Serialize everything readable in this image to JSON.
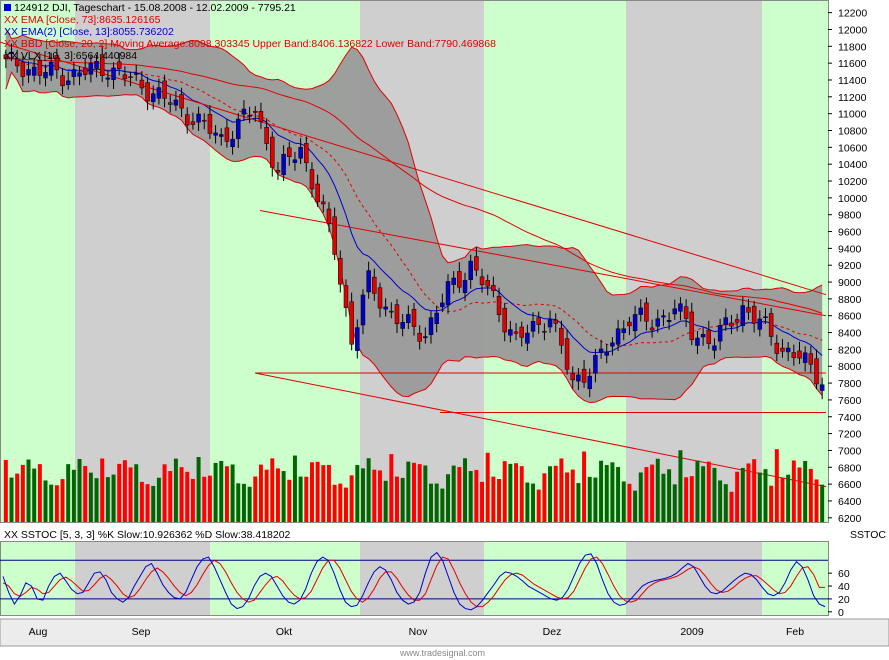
{
  "chart_data": {
    "type": "candlestick",
    "symbol_line": "124912  DJI, Tageschart - 15.08.2008 - 12.02.2009 - 7795.21",
    "indicator_labels": [
      {
        "text": "XX EMA [Close, 73]:8635.126165",
        "color": "#e00000"
      },
      {
        "text": "XX EMA(2) [Close, 13]:8055.736202",
        "color": "#0000cc"
      },
      {
        "text": "XX BBD [Close, 20, 2] Moving Average:8098.303345 Upper Band:8406.136822 Lower Band:7790.469868",
        "color": "#e00000"
      },
      {
        "text": "XX VLX [10, 3]:6564.440984",
        "color": "#000000"
      }
    ],
    "price_axis": {
      "ylim": [
        6150,
        12350
      ],
      "ticks": [
        6200,
        6400,
        6600,
        6800,
        7000,
        7200,
        7400,
        7600,
        7800,
        8000,
        8200,
        8400,
        8600,
        8800,
        9000,
        9200,
        9400,
        9600,
        9800,
        10000,
        10200,
        10400,
        10600,
        10800,
        11000,
        11200,
        11400,
        11600,
        11800,
        12000,
        12200
      ]
    },
    "x_labels": [
      "Aug",
      "Sep",
      "Okt",
      "Nov",
      "Dez",
      "2009",
      "Feb"
    ],
    "stoch": {
      "label": "XX SSTOC [5, 3, 3] %K Slow:10.926362 %D Slow:38.418202",
      "panel_title": "SSTOC",
      "ticks": [
        0,
        20,
        40,
        60
      ],
      "ylim": [
        -5,
        110
      ],
      "levels": [
        20,
        80
      ],
      "k_series": [
        55,
        30,
        12,
        25,
        45,
        40,
        20,
        18,
        40,
        55,
        60,
        48,
        35,
        28,
        30,
        45,
        60,
        62,
        50,
        30,
        20,
        15,
        22,
        40,
        55,
        70,
        75,
        60,
        42,
        30,
        22,
        20,
        30,
        50,
        70,
        82,
        85,
        70,
        50,
        30,
        12,
        5,
        8,
        20,
        40,
        55,
        60,
        55,
        40,
        25,
        15,
        12,
        18,
        35,
        60,
        78,
        85,
        80,
        60,
        35,
        15,
        8,
        10,
        25,
        45,
        62,
        70,
        65,
        50,
        30,
        18,
        12,
        15,
        30,
        60,
        85,
        92,
        80,
        55,
        30,
        12,
        5,
        3,
        8,
        18,
        30,
        42,
        55,
        62,
        60,
        55,
        48,
        40,
        35,
        30,
        25,
        20,
        18,
        22,
        35,
        55,
        75,
        88,
        90,
        75,
        50,
        28,
        15,
        10,
        12,
        20,
        30,
        40,
        45,
        48,
        50,
        52,
        55,
        60,
        68,
        75,
        70,
        55,
        40,
        30,
        28,
        32,
        40,
        48,
        55,
        60,
        58,
        50,
        38,
        28,
        25,
        30,
        45,
        65,
        78,
        70,
        50,
        25,
        12,
        8
      ],
      "d_series": [
        45,
        40,
        28,
        24,
        30,
        38,
        35,
        28,
        30,
        40,
        50,
        54,
        48,
        40,
        32,
        33,
        42,
        52,
        57,
        50,
        40,
        28,
        22,
        25,
        36,
        50,
        62,
        68,
        62,
        52,
        40,
        30,
        25,
        30,
        42,
        58,
        72,
        80,
        75,
        62,
        45,
        30,
        20,
        15,
        18,
        30,
        42,
        52,
        55,
        48,
        36,
        26,
        20,
        22,
        32,
        50,
        68,
        80,
        80,
        68,
        50,
        32,
        20,
        15,
        22,
        35,
        52,
        62,
        62,
        52,
        38,
        26,
        18,
        18,
        28,
        50,
        72,
        85,
        82,
        65,
        45,
        28,
        15,
        8,
        8,
        15,
        25,
        38,
        50,
        58,
        60,
        57,
        50,
        43,
        38,
        33,
        28,
        23,
        20,
        22,
        32,
        50,
        68,
        82,
        85,
        75,
        58,
        40,
        25,
        17,
        15,
        18,
        28,
        38,
        44,
        48,
        50,
        52,
        55,
        60,
        66,
        70,
        66,
        56,
        44,
        34,
        30,
        32,
        38,
        46,
        52,
        56,
        56,
        50,
        42,
        34,
        28,
        30,
        40,
        55,
        68,
        70,
        58,
        38,
        38
      ]
    },
    "volume_note": "volume bars in lower part of price panel, unscaled"
  },
  "footer": "www.tradesignal.com"
}
